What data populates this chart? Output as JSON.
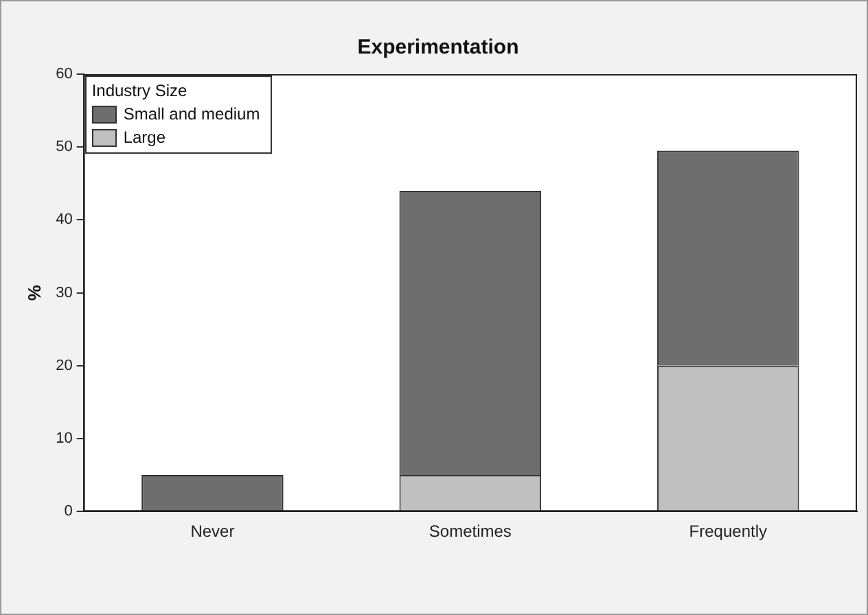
{
  "chart_data": {
    "type": "bar",
    "title": "Experimentation",
    "ylabel": "%",
    "legend_title": "Industry Size",
    "categories": [
      "Never",
      "Sometimes",
      "Frequently"
    ],
    "stacked": true,
    "legend": "top left",
    "grid": false,
    "ylim": [
      0,
      60
    ],
    "yticks": [
      0,
      10,
      20,
      30,
      40,
      50,
      60
    ],
    "series": [
      {
        "name": "Large",
        "color": "#c0c0c0",
        "values": [
          0,
          5,
          20
        ]
      },
      {
        "name": "Small and medium",
        "color": "#6e6e6e",
        "values": [
          5,
          39,
          29.5
        ]
      }
    ]
  }
}
